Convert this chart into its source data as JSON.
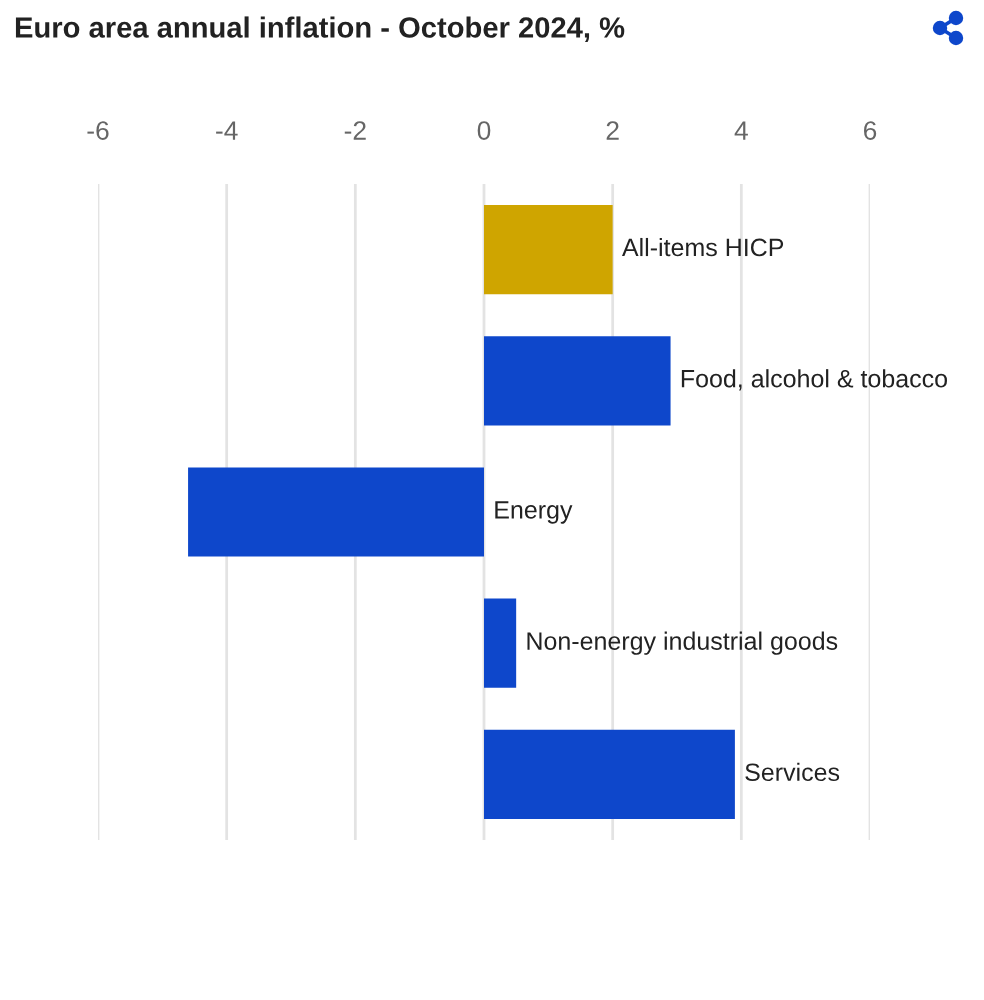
{
  "chart_data": {
    "type": "bar",
    "orientation": "horizontal",
    "title": "Euro area annual inflation - October 2024, %",
    "categories": [
      "All-items HICP",
      "Food, alcohol & tobacco",
      "Energy",
      "Non-energy industrial goods",
      "Services"
    ],
    "values": [
      2.0,
      2.9,
      -4.6,
      0.5,
      3.9
    ],
    "colors": [
      "#cfa500",
      "#0e47cb",
      "#0e47cb",
      "#0e47cb",
      "#0e47cb"
    ],
    "xlim": [
      -6,
      6
    ],
    "xticks": [
      -6,
      -4,
      -2,
      0,
      2,
      4,
      6
    ],
    "grid": "x"
  }
}
